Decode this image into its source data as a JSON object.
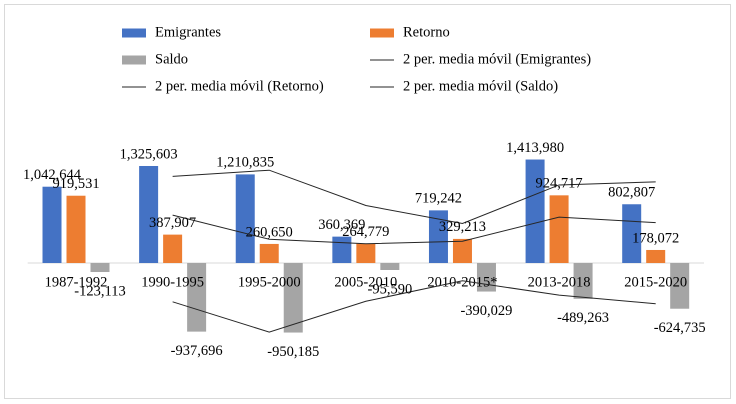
{
  "chart_data": {
    "type": "bar",
    "categories": [
      "1987-1992",
      "1990-1995",
      "1995-2000",
      "2005-2010",
      "2010-2015*",
      "2013-2018",
      "2015-2020"
    ],
    "series": [
      {
        "name": "Emigrantes",
        "color": "#4472c4",
        "values": [
          1042644,
          1325603,
          1210835,
          360369,
          719242,
          1413980,
          802807
        ],
        "value_labels": [
          "1,042,644",
          "1,325,603",
          "1,210,835",
          "360,369",
          "719,242",
          "1,413,980",
          "802,807"
        ]
      },
      {
        "name": "Retorno",
        "color": "#ed7d31",
        "values": [
          919531,
          387907,
          260650,
          264779,
          329213,
          924717,
          178072
        ],
        "value_labels": [
          "919,531",
          "387,907",
          "260,650",
          "264,779",
          "329,213",
          "924,717",
          "178,072"
        ]
      },
      {
        "name": "Saldo",
        "color": "#a5a5a5",
        "values": [
          -123113,
          -937696,
          -950185,
          -95590,
          -390029,
          -489263,
          -624735
        ],
        "value_labels": [
          "-123,113",
          "-937,696",
          "-950,185",
          "-95,590",
          "-390,029",
          "-489,263",
          "-624,735"
        ]
      },
      {
        "name": "2 per. media móvil (Emigrantes)",
        "type": "line",
        "color": "#262626",
        "values": [
          null,
          1184124,
          1268219,
          785602,
          539806,
          1066611,
          1108394
        ]
      },
      {
        "name": "2 per. media móvil (Retorno)",
        "type": "line",
        "color": "#262626",
        "values": [
          null,
          653719,
          324279,
          262715,
          296996,
          626965,
          551395
        ]
      },
      {
        "name": "2 per. media móvil (Saldo)",
        "type": "line",
        "color": "#262626",
        "values": [
          null,
          -530405,
          -943941,
          -522888,
          -242810,
          -439646,
          -556999
        ]
      }
    ],
    "ylim": [
      -1100000,
      1700000
    ]
  }
}
